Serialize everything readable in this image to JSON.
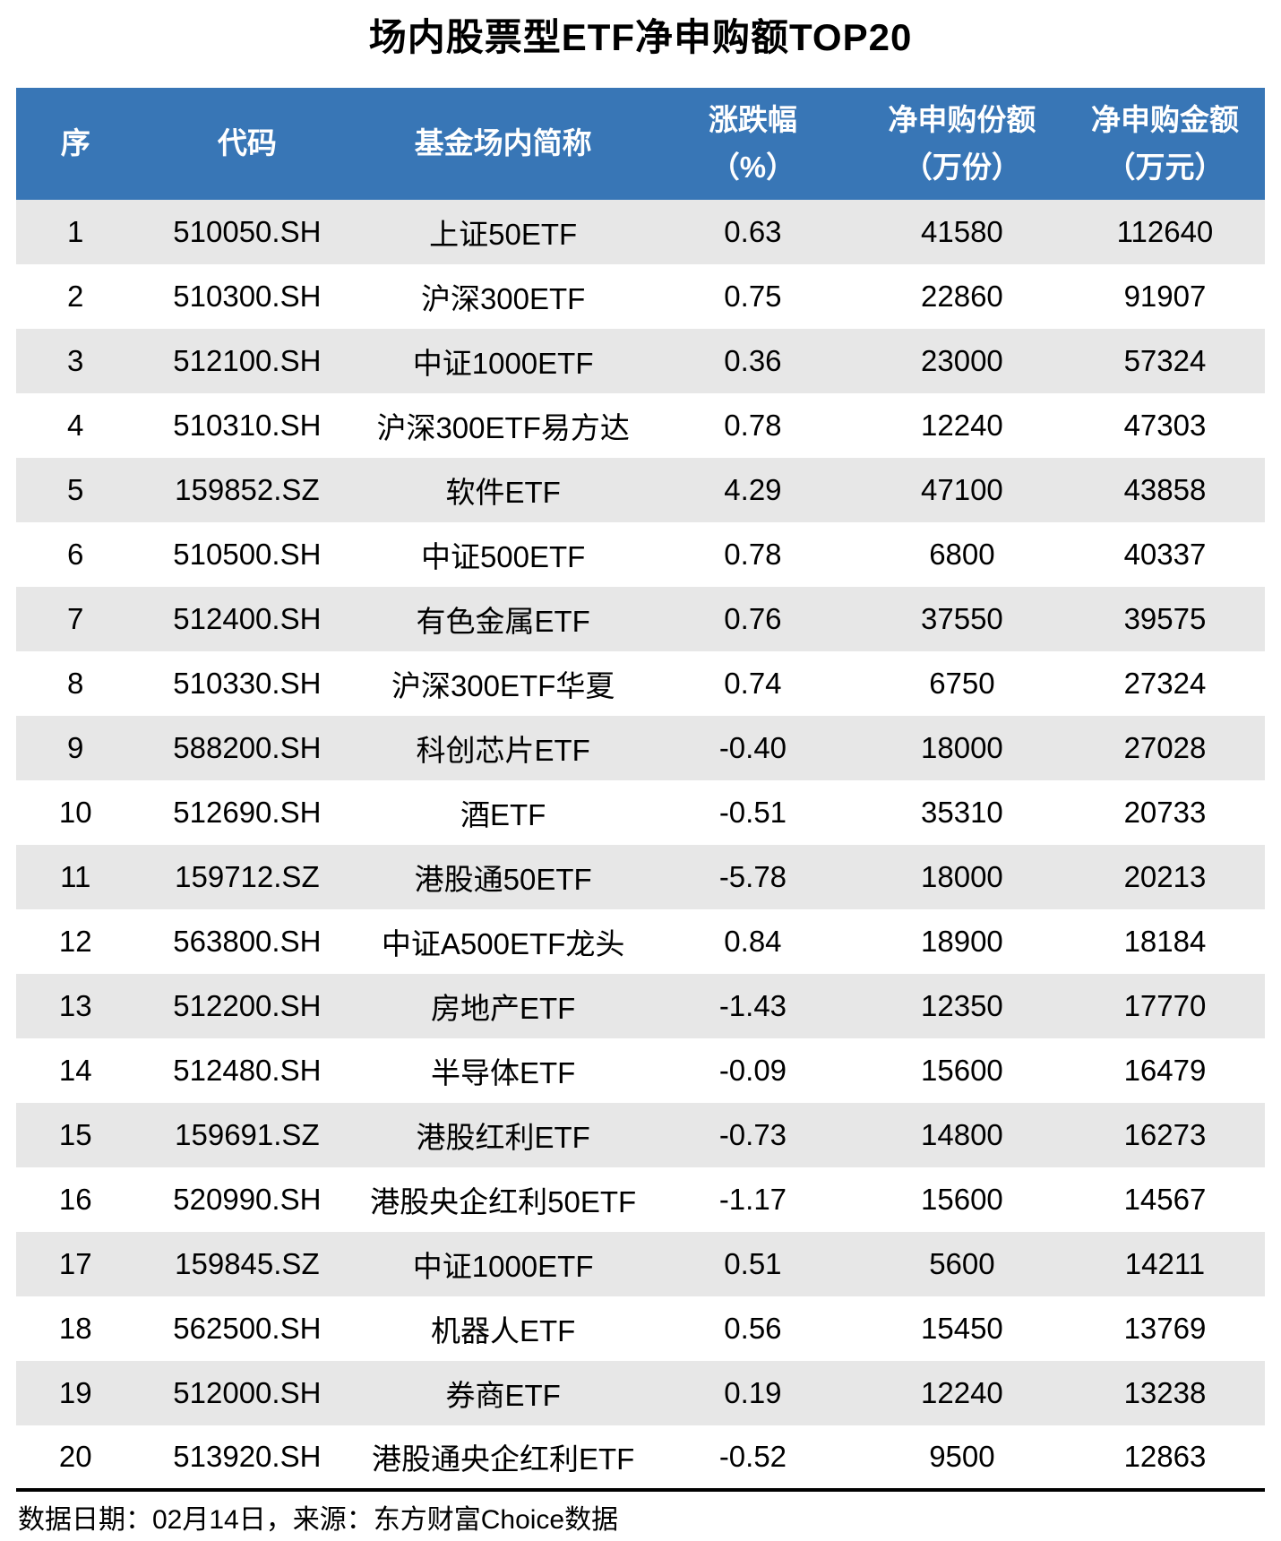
{
  "title": "场内股票型ETF净申购额TOP20",
  "footer": {
    "note": "数据日期：02月14日，来源：东方财富Choice数据"
  },
  "colors": {
    "header_bg": "#3876B6",
    "row_alt_bg": "#E7E7E7",
    "divider": "#000000",
    "header_text": "#FFFFFF",
    "body_text": "#000000"
  },
  "chart_data": {
    "type": "table",
    "title": "场内股票型ETF净申购额TOP20",
    "columns": [
      {
        "line1": "序",
        "line2": ""
      },
      {
        "line1": "代码",
        "line2": ""
      },
      {
        "line1": "基金场内简称",
        "line2": ""
      },
      {
        "line1": "涨跌幅",
        "line2": "（%）"
      },
      {
        "line1": "净申购份额",
        "line2": "（万份）"
      },
      {
        "line1": "净申购金额",
        "line2": "（万元）"
      }
    ],
    "rows": [
      [
        "1",
        "510050.SH",
        "上证50ETF",
        "0.63",
        "41580",
        "112640"
      ],
      [
        "2",
        "510300.SH",
        "沪深300ETF",
        "0.75",
        "22860",
        "91907"
      ],
      [
        "3",
        "512100.SH",
        "中证1000ETF",
        "0.36",
        "23000",
        "57324"
      ],
      [
        "4",
        "510310.SH",
        "沪深300ETF易方达",
        "0.78",
        "12240",
        "47303"
      ],
      [
        "5",
        "159852.SZ",
        "软件ETF",
        "4.29",
        "47100",
        "43858"
      ],
      [
        "6",
        "510500.SH",
        "中证500ETF",
        "0.78",
        "6800",
        "40337"
      ],
      [
        "7",
        "512400.SH",
        "有色金属ETF",
        "0.76",
        "37550",
        "39575"
      ],
      [
        "8",
        "510330.SH",
        "沪深300ETF华夏",
        "0.74",
        "6750",
        "27324"
      ],
      [
        "9",
        "588200.SH",
        "科创芯片ETF",
        "-0.40",
        "18000",
        "27028"
      ],
      [
        "10",
        "512690.SH",
        "酒ETF",
        "-0.51",
        "35310",
        "20733"
      ],
      [
        "11",
        "159712.SZ",
        "港股通50ETF",
        "-5.78",
        "18000",
        "20213"
      ],
      [
        "12",
        "563800.SH",
        "中证A500ETF龙头",
        "0.84",
        "18900",
        "18184"
      ],
      [
        "13",
        "512200.SH",
        "房地产ETF",
        "-1.43",
        "12350",
        "17770"
      ],
      [
        "14",
        "512480.SH",
        "半导体ETF",
        "-0.09",
        "15600",
        "16479"
      ],
      [
        "15",
        "159691.SZ",
        "港股红利ETF",
        "-0.73",
        "14800",
        "16273"
      ],
      [
        "16",
        "520990.SH",
        "港股央企红利50ETF",
        "-1.17",
        "15600",
        "14567"
      ],
      [
        "17",
        "159845.SZ",
        "中证1000ETF",
        "0.51",
        "5600",
        "14211"
      ],
      [
        "18",
        "562500.SH",
        "机器人ETF",
        "0.56",
        "15450",
        "13769"
      ],
      [
        "19",
        "512000.SH",
        "券商ETF",
        "0.19",
        "12240",
        "13238"
      ],
      [
        "20",
        "513920.SH",
        "港股通央企红利ETF",
        "-0.52",
        "9500",
        "12863"
      ]
    ]
  }
}
